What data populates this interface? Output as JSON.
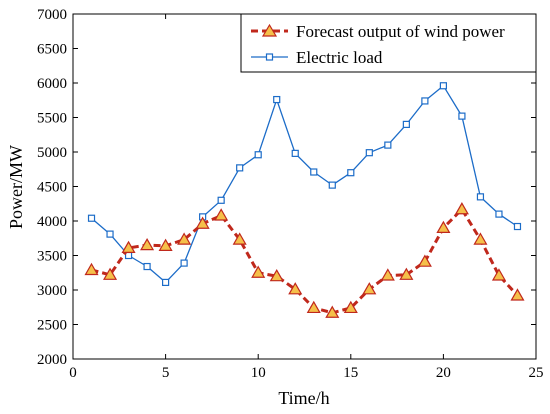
{
  "chart_data": {
    "type": "line",
    "xlabel": "Time/h",
    "ylabel": "Power/MW",
    "xlim": [
      0,
      25
    ],
    "ylim": [
      2000,
      7000
    ],
    "xticks": [
      0,
      5,
      10,
      15,
      20,
      25
    ],
    "yticks": [
      2000,
      2500,
      3000,
      3500,
      4000,
      4500,
      5000,
      5500,
      6000,
      6500,
      7000
    ],
    "grid": false,
    "legend_position": "top-right",
    "series": [
      {
        "name": "Forecast output of wind power",
        "color": "#c0281c",
        "marker": "triangle",
        "marker_fill": "#f5c04a",
        "line_style": "dashed",
        "x": [
          1,
          2,
          3,
          4,
          5,
          6,
          7,
          8,
          9,
          10,
          11,
          12,
          13,
          14,
          15,
          16,
          17,
          18,
          19,
          20,
          21,
          22,
          23,
          24
        ],
        "values": [
          3290,
          3220,
          3610,
          3650,
          3640,
          3730,
          3960,
          4080,
          3730,
          3250,
          3200,
          3010,
          2740,
          2670,
          2740,
          3010,
          3210,
          3220,
          3410,
          3900,
          4170,
          3730,
          3210,
          2920
        ]
      },
      {
        "name": "Electric load",
        "color": "#1c6cc8",
        "marker": "square",
        "marker_fill": "#ffffff",
        "line_style": "solid",
        "x": [
          1,
          2,
          3,
          4,
          5,
          6,
          7,
          8,
          9,
          10,
          11,
          12,
          13,
          14,
          15,
          16,
          17,
          18,
          19,
          20,
          21,
          22,
          23,
          24
        ],
        "values": [
          4040,
          3810,
          3500,
          3340,
          3110,
          3390,
          4060,
          4300,
          4770,
          4960,
          5760,
          4980,
          4710,
          4520,
          4700,
          4990,
          5100,
          5400,
          5740,
          5960,
          5520,
          4350,
          4100,
          3920
        ]
      }
    ]
  }
}
